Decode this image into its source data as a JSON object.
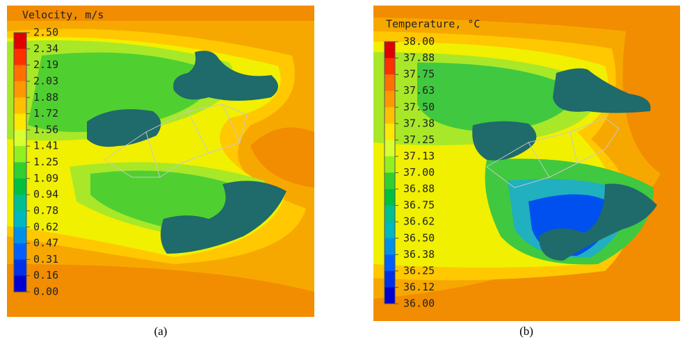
{
  "panels": [
    {
      "title": "Velocity, m/s",
      "legend_labels": [
        "2.50",
        "2.34",
        "2.19",
        "2.03",
        "1.88",
        "1.72",
        "1.56",
        "1.41",
        "1.25",
        "1.09",
        "0.94",
        "0.78",
        "0.62",
        "0.47",
        "0.31",
        "0.16",
        "0.00"
      ],
      "caption": "(a)"
    },
    {
      "title": "Temperature, °C",
      "legend_labels": [
        "38.00",
        "37.88",
        "37.75",
        "37.63",
        "37.50",
        "37.38",
        "37.25",
        "37.13",
        "37.00",
        "36.88",
        "36.75",
        "36.62",
        "36.50",
        "36.38",
        "36.25",
        "36.12",
        "36.00"
      ],
      "caption": "(b)"
    }
  ]
}
